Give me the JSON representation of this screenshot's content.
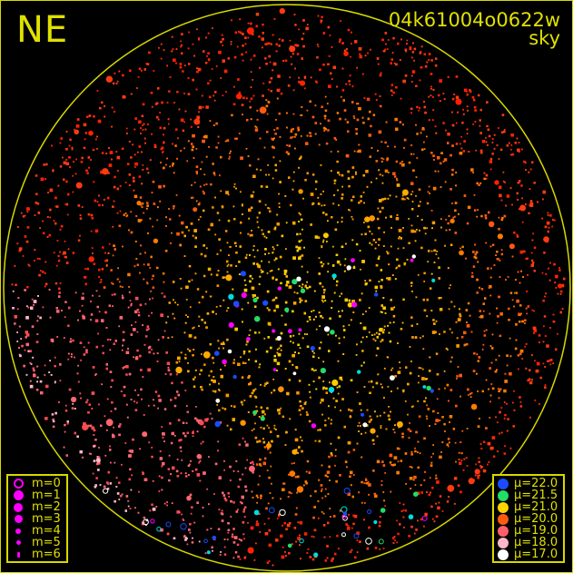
{
  "direction": "NE",
  "title": "04k61004o0622w",
  "subtitle": "sky",
  "colors": {
    "frame": "#d8d800",
    "text": "#e0e000",
    "background": "#000000",
    "magnitude_marker": "#ff00ff"
  },
  "magnitude_legend": [
    {
      "label": "m=0",
      "marker": "ring"
    },
    {
      "label": "m=1",
      "marker": "dot"
    },
    {
      "label": "m=2",
      "marker": "dot"
    },
    {
      "label": "m=3",
      "marker": "dot"
    },
    {
      "label": "m=4",
      "marker": "dot"
    },
    {
      "label": "m=5",
      "marker": "dot"
    },
    {
      "label": "m=6",
      "marker": "dot"
    }
  ],
  "brightness_legend": [
    {
      "label": "μ=22.0",
      "color": "#1a4cff"
    },
    {
      "label": "μ=21.5",
      "color": "#22dd66"
    },
    {
      "label": "μ=21.0",
      "color": "#ffd400"
    },
    {
      "label": "μ=20.0",
      "color": "#ff5a10"
    },
    {
      "label": "μ=19.0",
      "color": "#ff5f6a"
    },
    {
      "label": "μ=18.0",
      "color": "#ffb6c8"
    },
    {
      "label": "μ=17.0",
      "color": "#ffffff"
    }
  ]
}
